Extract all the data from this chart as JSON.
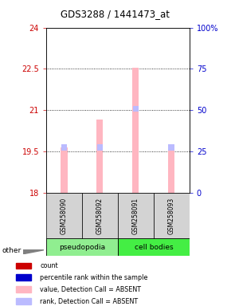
{
  "title": "GDS3288 / 1441473_at",
  "samples": [
    "GSM258090",
    "GSM258092",
    "GSM258091",
    "GSM258093"
  ],
  "groups": [
    "pseudopodia",
    "pseudopodia",
    "cell bodies",
    "cell bodies"
  ],
  "ylim_left": [
    18,
    24
  ],
  "yticks_left": [
    18,
    19.5,
    21,
    22.5,
    24
  ],
  "yticks_right": [
    0,
    25,
    50,
    75,
    100
  ],
  "ytick_labels_left": [
    "18",
    "19.5",
    "21",
    "22.5",
    "24"
  ],
  "ytick_labels_right": [
    "0",
    "25",
    "50",
    "75",
    "100%"
  ],
  "bar_values": [
    19.65,
    20.65,
    22.55,
    19.65
  ],
  "rank_values": [
    19.65,
    19.65,
    21.05,
    19.65
  ],
  "bar_bottom": 18,
  "bar_color_absent": "#FFB6C1",
  "rank_color_absent": "#BBBBFF",
  "sample_box_color": "#D3D3D3",
  "left_axis_color": "#CC0000",
  "right_axis_color": "#0000CC",
  "group_defs": [
    {
      "name": "pseudopodia",
      "start": 0,
      "end": 1,
      "color": "#90EE90"
    },
    {
      "name": "cell bodies",
      "start": 2,
      "end": 3,
      "color": "#44EE44"
    }
  ],
  "legend_items": [
    {
      "label": "count",
      "color": "#CC0000"
    },
    {
      "label": "percentile rank within the sample",
      "color": "#0000CC"
    },
    {
      "label": "value, Detection Call = ABSENT",
      "color": "#FFB6C1"
    },
    {
      "label": "rank, Detection Call = ABSENT",
      "color": "#BBBBFF"
    }
  ]
}
